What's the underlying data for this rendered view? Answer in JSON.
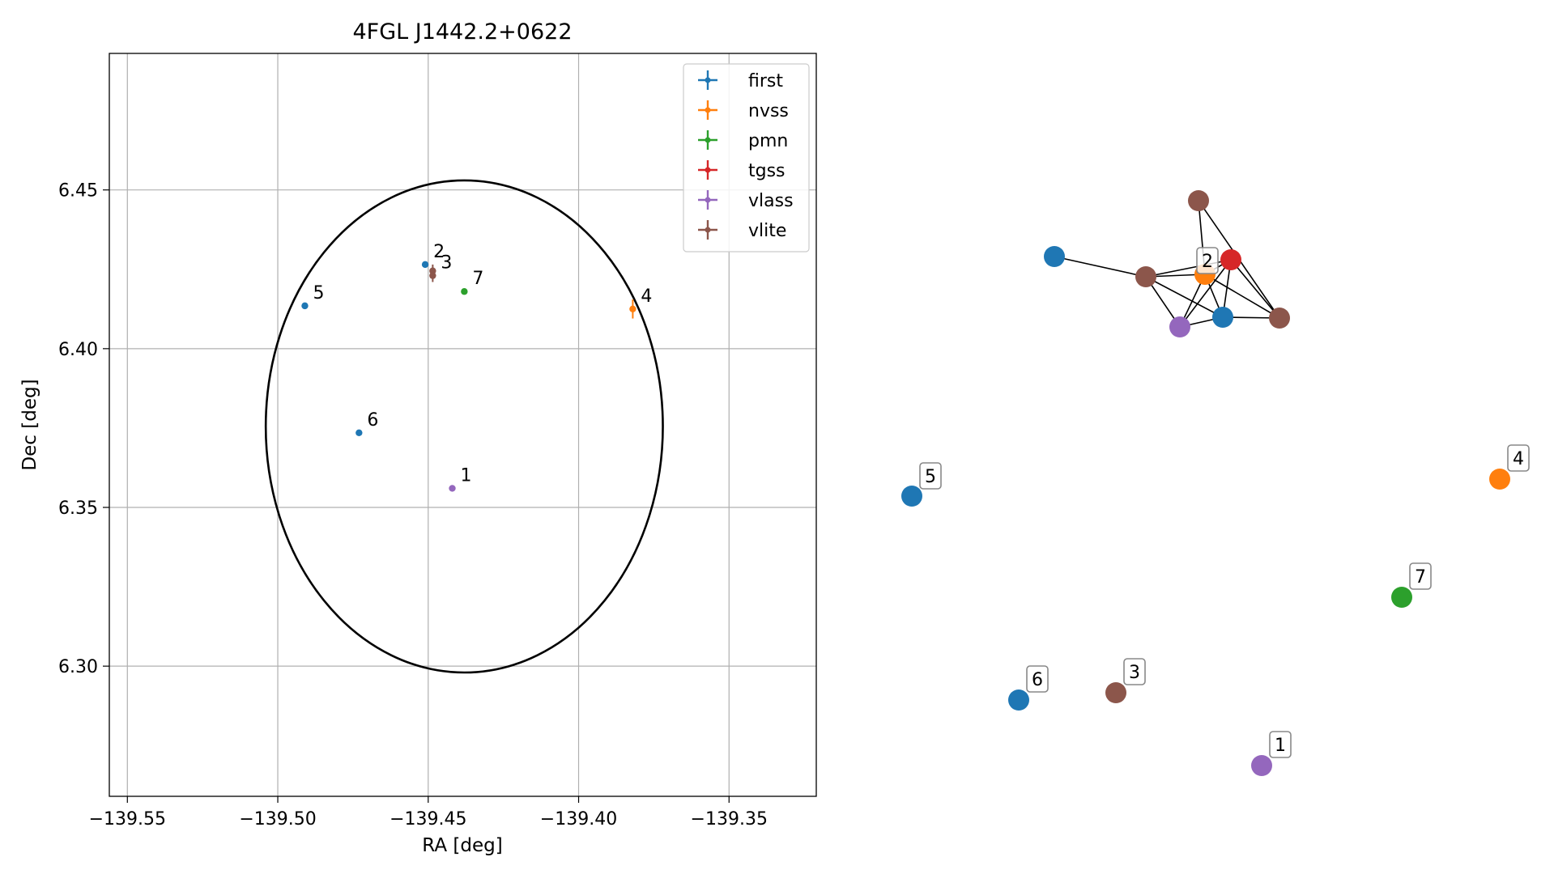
{
  "chart_data": [
    {
      "type": "scatter",
      "title": "4FGL J1442.2+0622",
      "xlabel": "RA [deg]",
      "ylabel": "Dec [deg]",
      "xlim": [
        -139.556,
        -139.321
      ],
      "ylim": [
        6.259,
        6.493
      ],
      "xticks": [
        -139.55,
        -139.5,
        -139.45,
        -139.4,
        -139.35
      ],
      "xtick_labels": [
        "−139.55",
        "−139.50",
        "−139.45",
        "−139.40",
        "−139.35"
      ],
      "yticks": [
        6.3,
        6.35,
        6.4,
        6.45
      ],
      "ytick_labels": [
        "6.30",
        "6.35",
        "6.40",
        "6.45"
      ],
      "grid": true,
      "legend_position": "top-right",
      "series": [
        {
          "name": "first",
          "color": "#1f77b4",
          "points": [
            {
              "x": -139.451,
              "y": 6.4265,
              "label": "2"
            },
            {
              "x": -139.491,
              "y": 6.4135,
              "label": "5"
            },
            {
              "x": -139.473,
              "y": 6.3735,
              "label": "6"
            }
          ]
        },
        {
          "name": "nvss",
          "color": "#ff7f0e",
          "points": [
            {
              "x": -139.382,
              "y": 6.4125,
              "label": "4",
              "yerr": 0.003
            }
          ]
        },
        {
          "name": "pmn",
          "color": "#2ca02c",
          "points": [
            {
              "x": -139.438,
              "y": 6.418,
              "label": "7"
            }
          ]
        },
        {
          "name": "tgss",
          "color": "#d62728",
          "points": []
        },
        {
          "name": "vlass",
          "color": "#9467bd",
          "points": [
            {
              "x": -139.442,
              "y": 6.356,
              "label": "1"
            }
          ]
        },
        {
          "name": "vlite",
          "color": "#8c564b",
          "points": [
            {
              "x": -139.4485,
              "y": 6.4245,
              "label": "",
              "yerr": 0.002
            },
            {
              "x": -139.4485,
              "y": 6.423,
              "label": "3",
              "yerr": 0.002
            }
          ]
        }
      ],
      "ellipse": {
        "center": [
          -139.438,
          6.3755
        ],
        "semi_axes": [
          0.066,
          0.0775
        ],
        "color": "#000000"
      }
    },
    {
      "type": "network",
      "title": "",
      "nodes": [
        {
          "id": "a",
          "color": "#8c564b",
          "label": ""
        },
        {
          "id": "b",
          "color": "#1f77b4",
          "label": ""
        },
        {
          "id": "c",
          "color": "#8c564b",
          "label": ""
        },
        {
          "id": "d",
          "color": "#ff7f0e",
          "label": "2"
        },
        {
          "id": "e",
          "color": "#d62728",
          "label": ""
        },
        {
          "id": "f",
          "color": "#9467bd",
          "label": ""
        },
        {
          "id": "g",
          "color": "#1f77b4",
          "label": ""
        },
        {
          "id": "h",
          "color": "#8c564b",
          "label": ""
        },
        {
          "id": "n5",
          "color": "#1f77b4",
          "label": "5"
        },
        {
          "id": "n4",
          "color": "#ff7f0e",
          "label": "4"
        },
        {
          "id": "n7",
          "color": "#2ca02c",
          "label": "7"
        },
        {
          "id": "n6",
          "color": "#1f77b4",
          "label": "6"
        },
        {
          "id": "n3",
          "color": "#8c564b",
          "label": "3"
        },
        {
          "id": "n1",
          "color": "#9467bd",
          "label": "1"
        }
      ],
      "edges": [
        [
          "b",
          "c"
        ],
        [
          "c",
          "d"
        ],
        [
          "c",
          "e"
        ],
        [
          "c",
          "f"
        ],
        [
          "c",
          "g"
        ],
        [
          "a",
          "d"
        ],
        [
          "a",
          "h"
        ],
        [
          "d",
          "f"
        ],
        [
          "d",
          "g"
        ],
        [
          "d",
          "h"
        ],
        [
          "d",
          "e"
        ],
        [
          "e",
          "f"
        ],
        [
          "e",
          "g"
        ],
        [
          "e",
          "h"
        ],
        [
          "f",
          "g"
        ],
        [
          "g",
          "h"
        ]
      ]
    }
  ]
}
